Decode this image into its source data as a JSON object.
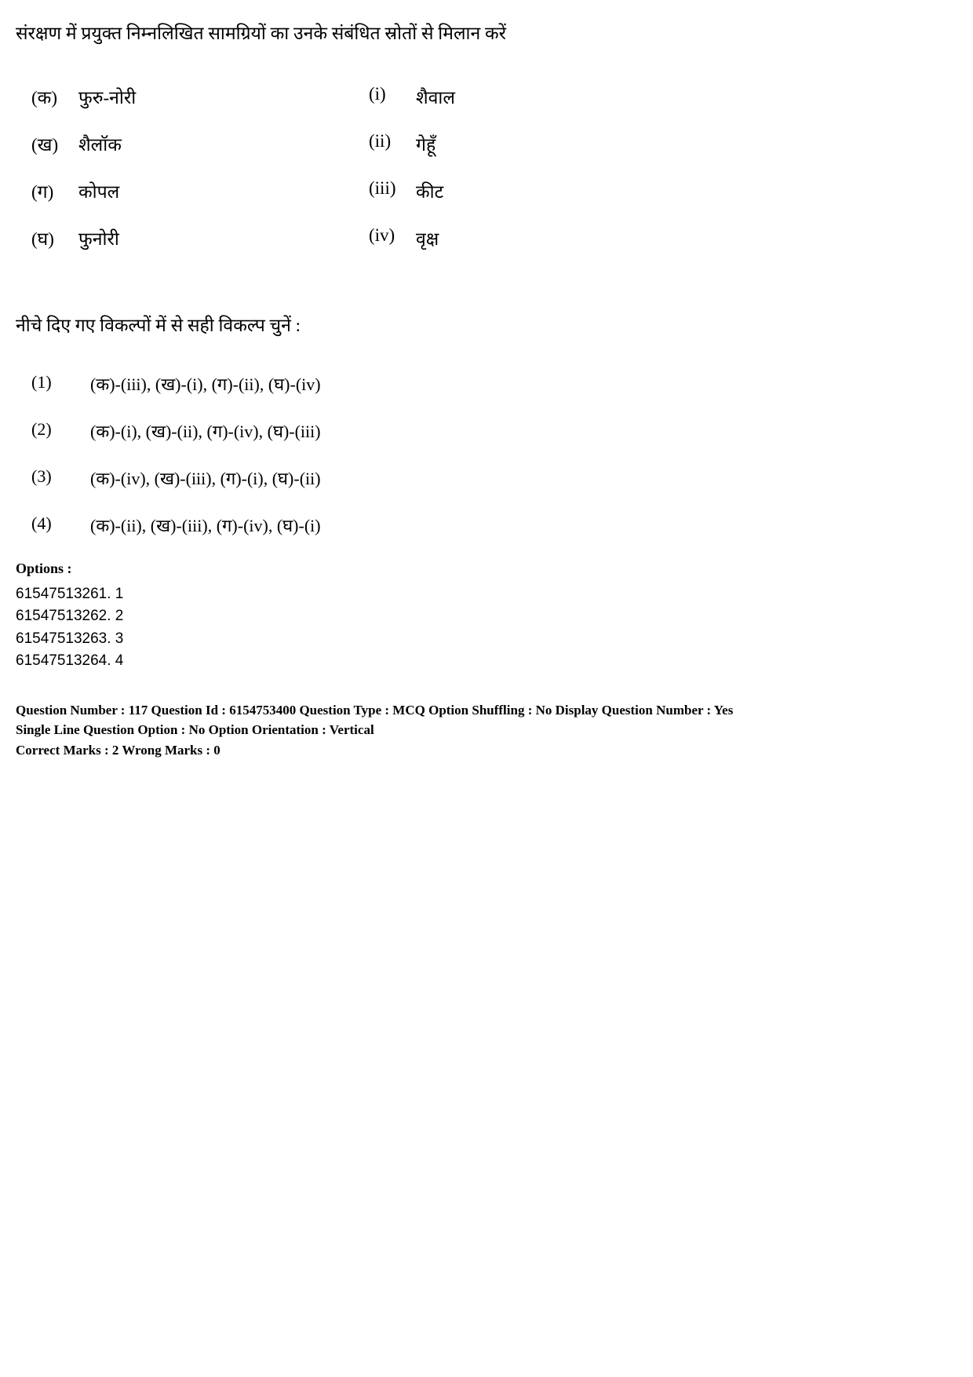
{
  "question": {
    "intro": "संरक्षण में प्रयुक्त निम्नलिखित सामग्रियों का उनके संबंधित स्रोतों से मिलान करें",
    "leftColumn": [
      {
        "label": "(क)",
        "text": "फुरु-नोरी"
      },
      {
        "label": "(ख)",
        "text": "शैलॉक"
      },
      {
        "label": "(ग)",
        "text": "कोपल"
      },
      {
        "label": "(घ)",
        "text": "फुनोरी"
      }
    ],
    "rightColumn": [
      {
        "label": "(i)",
        "text": "शैवाल"
      },
      {
        "label": "(ii)",
        "text": "गेहूँ"
      },
      {
        "label": "(iii)",
        "text": "कीट"
      },
      {
        "label": "(iv)",
        "text": "वृक्ष"
      }
    ],
    "instruction": "नीचे दिए गए विकल्पों में से सही विकल्प चुनें :",
    "answerOptions": [
      {
        "num": "(1)",
        "text": "(क)-(iii), (ख)-(i), (ग)-(ii), (घ)-(iv)"
      },
      {
        "num": "(2)",
        "text": "(क)-(i), (ख)-(ii), (ग)-(iv), (घ)-(iii)"
      },
      {
        "num": "(3)",
        "text": "(क)-(iv), (ख)-(iii), (ग)-(i), (घ)-(ii)"
      },
      {
        "num": "(4)",
        "text": "(क)-(ii), (ख)-(iii), (ग)-(iv), (घ)-(i)"
      }
    ]
  },
  "optionsSection": {
    "header": "Options :",
    "items": [
      "61547513261. 1",
      "61547513262. 2",
      "61547513263. 3",
      "61547513264. 4"
    ]
  },
  "meta": {
    "line1": "Question Number : 117  Question Id : 6154753400  Question Type : MCQ  Option Shuffling : No  Display Question Number : Yes",
    "line2": "Single Line Question Option : No  Option Orientation : Vertical",
    "line3": "Correct Marks : 2  Wrong Marks : 0"
  }
}
